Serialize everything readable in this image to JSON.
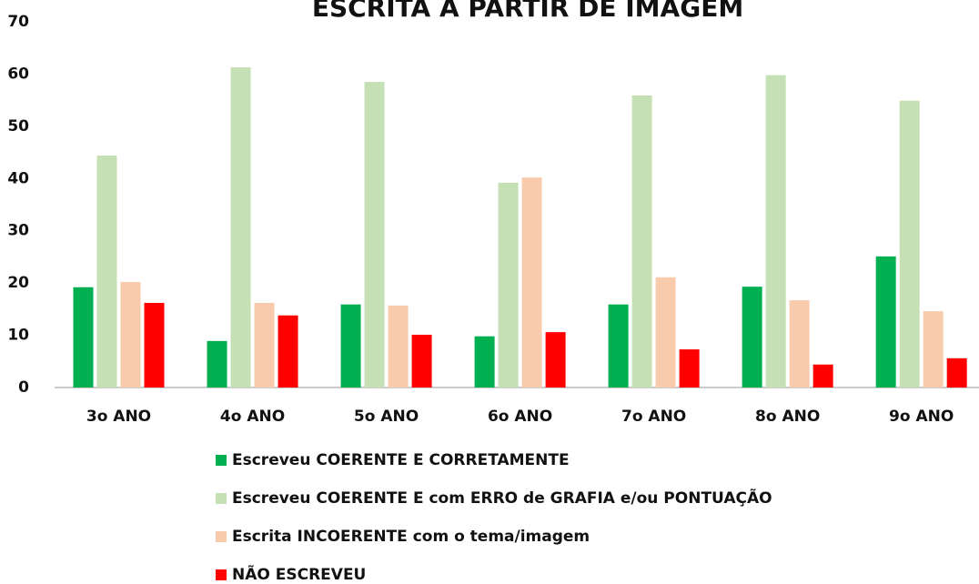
{
  "chart_data": {
    "type": "bar",
    "title": "ESCRITA A PARTIR DE IMAGEM",
    "categories": [
      "3o ANO",
      "4o ANO",
      "5o ANO",
      "6o ANO",
      "7o ANO",
      "8o ANO",
      "9o ANO"
    ],
    "series": [
      {
        "name": "Escreveu COERENTE E CORRETAMENTE",
        "color": "#00b050",
        "values": [
          19.2,
          8.9,
          15.9,
          9.8,
          15.9,
          19.3,
          25.1
        ]
      },
      {
        "name": "Escreveu COERENTE E com ERRO de GRAFIA e/ou PONTUAÇÃO",
        "color": "#c5e0b4",
        "values": [
          44.4,
          61.3,
          58.5,
          39.2,
          55.9,
          59.8,
          54.9
        ]
      },
      {
        "name": "Escrita INCOERENTE com o tema/imagem",
        "color": "#f8cbad",
        "values": [
          20.2,
          16.2,
          15.7,
          40.2,
          21.1,
          16.7,
          14.6
        ]
      },
      {
        "name": "NÃO ESCREVEU",
        "color": "#ff0000",
        "values": [
          16.2,
          13.8,
          10.1,
          10.6,
          7.3,
          4.4,
          5.6
        ]
      }
    ],
    "ylim": [
      0,
      70
    ],
    "yticks": [
      0,
      10,
      20,
      30,
      40,
      50,
      60,
      70
    ],
    "grid": false
  }
}
